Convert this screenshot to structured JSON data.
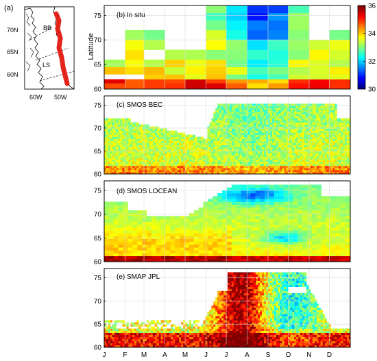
{
  "map_panel": {
    "label": "(a)",
    "lat_ticks": [
      "70N",
      "65N",
      "60N"
    ],
    "lon_ticks": [
      "60W",
      "50W"
    ],
    "region_labels": [
      "BB",
      "LS"
    ],
    "track_color": "#e3241b"
  },
  "colorbar": {
    "ticks": [
      "36",
      "34",
      "32",
      "30"
    ],
    "range": [
      30,
      36
    ],
    "colormap": "jet"
  },
  "chart_data": [
    {
      "type": "heatmap",
      "title": "(b) In situ",
      "ylabel": "Latitude",
      "yticks": [
        60,
        65,
        70,
        75
      ],
      "ylim": [
        60,
        77
      ],
      "resolution": "monthly x 2-3 deg latitude bands",
      "notes": "High latitudes (70-77N) sampled only Jun-Oct with fresh values 30-32 in Jul-Sep; southern bands salty (34-35.5) in winter-spring."
    },
    {
      "type": "heatmap",
      "title": "(c) SMOS BEC",
      "yticks": [
        60,
        65,
        70,
        75
      ],
      "ylim": [
        60,
        77
      ],
      "resolution": "daily x ~0.25 deg",
      "notes": "Coverage limited to south of ~72N in winter/spring, extending to ~75N Jun-Nov; values mostly 33-34.5."
    },
    {
      "type": "heatmap",
      "title": "(d) SMOS LOCEAN",
      "yticks": [
        60,
        65,
        70,
        75
      ],
      "ylim": [
        60,
        77
      ],
      "resolution": "weekly x 1 deg",
      "notes": "Fresh core (31-32) near 73-75N in Jul-Sep and around 64-66N in Aug-Oct; salty (35+) band near 60-61N."
    },
    {
      "type": "heatmap",
      "title": "(e) SMAP JPL",
      "yticks": [
        60,
        65,
        70,
        75
      ],
      "ylim": [
        60,
        77
      ],
      "resolution": "daily x ~0.25 deg",
      "notes": "Sparse winter coverage; strong salty anomaly (35-36) Jun-Aug north of 65N; fresher values (32-33) Sep-Nov."
    }
  ],
  "x_axis": {
    "months": [
      "J",
      "F",
      "M",
      "A",
      "M",
      "J",
      "J",
      "A",
      "S",
      "O",
      "N",
      "D"
    ]
  }
}
